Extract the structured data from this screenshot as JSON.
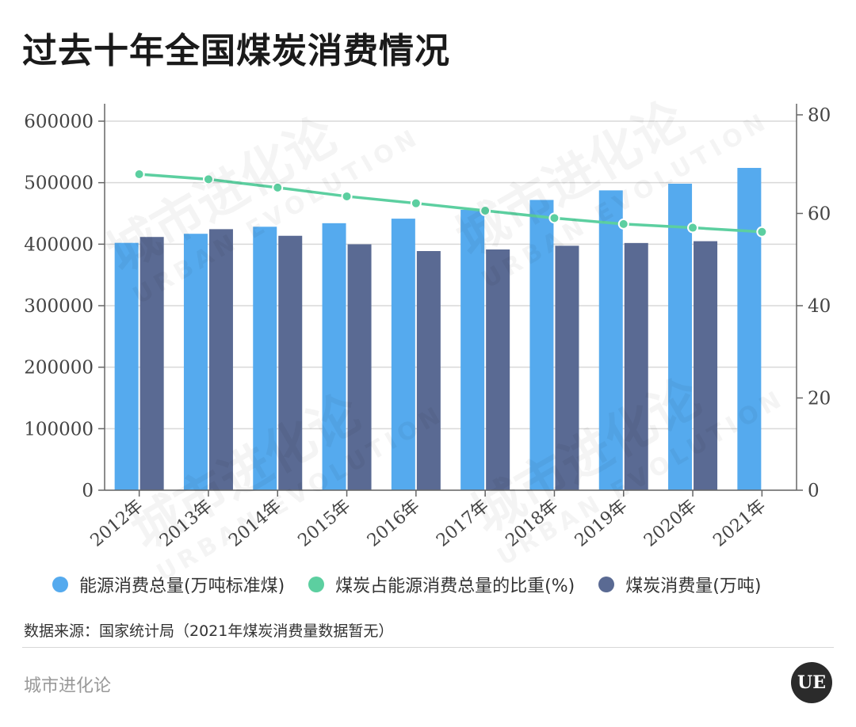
{
  "title": "过去十年全国煤炭消费情况",
  "colors": {
    "energy_total": "#55aaee",
    "coal_ratio": "#5ccfa0",
    "coal_consumption": "#5a6a93",
    "grid": "#d9d9d9",
    "axis": "#666666"
  },
  "chart_data": {
    "type": "bar",
    "categories": [
      "2012年",
      "2013年",
      "2014年",
      "2015年",
      "2016年",
      "2017年",
      "2018年",
      "2019年",
      "2020年",
      "2021年"
    ],
    "series": [
      {
        "name": "能源消费总量(万吨标准煤)",
        "type": "bar",
        "axis": "left",
        "values": [
          402138,
          416913,
          428334,
          434113,
          441492,
          455827,
          471925,
          487488,
          498314,
          524000
        ]
      },
      {
        "name": "煤炭消费量(万吨)",
        "type": "bar",
        "axis": "left",
        "values": [
          411727,
          424426,
          413633,
          399834,
          388820,
          391403,
          397452,
          401915,
          404860,
          null
        ]
      },
      {
        "name": "煤炭占能源消费总量的比重(%)",
        "type": "line",
        "axis": "right",
        "values": [
          68.5,
          67.4,
          65.6,
          63.7,
          62.2,
          60.6,
          59.0,
          57.7,
          56.9,
          56.0
        ]
      }
    ],
    "y_left": {
      "min": 0,
      "max": 600000,
      "ticks": [
        "0",
        "100000",
        "200000",
        "300000",
        "400000",
        "500000",
        "600000"
      ]
    },
    "y_right": {
      "min": 0,
      "max": 80,
      "ticks": [
        "0",
        "20",
        "40",
        "60",
        "80"
      ]
    },
    "legend": [
      "能源消费总量(万吨标准煤)",
      "煤炭占能源消费总量的比重(%)",
      "煤炭消费量(万吨)"
    ],
    "legend_position": "bottom",
    "grid": true
  },
  "source_note": "数据来源：国家统计局（2021年煤炭消费量数据暂无）",
  "brand": "城市进化论",
  "logo_text": "UE",
  "watermark": {
    "cn": "城市进化论",
    "en": "URBAN EVOLUTION"
  }
}
